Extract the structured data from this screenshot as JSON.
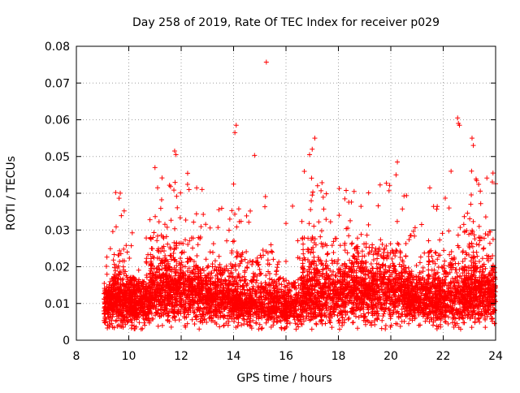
{
  "chart_data": {
    "type": "scatter",
    "title": "Day 258 of 2019, Rate Of TEC Index for receiver p029",
    "xlabel": "GPS time / hours",
    "ylabel": "ROTI / TECUs",
    "xlim": [
      8,
      24
    ],
    "ylim": [
      0,
      0.08
    ],
    "xticks": [
      8,
      10,
      12,
      14,
      16,
      18,
      20,
      22,
      24
    ],
    "yticks": [
      0,
      0.01,
      0.02,
      0.03,
      0.04,
      0.05,
      0.06,
      0.07,
      0.08
    ],
    "xtick_labels": [
      "8",
      "10",
      "12",
      "14",
      "16",
      "18",
      "20",
      "22",
      "24"
    ],
    "ytick_labels": [
      "0",
      "0.01",
      "0.02",
      "0.03",
      "0.04",
      "0.05",
      "0.06",
      "0.07",
      "0.08"
    ],
    "grid": true,
    "marker": "+",
    "marker_color": "#ff0000",
    "series": [
      {
        "name": "ROTI",
        "notable_points": [
          {
            "x": 15.25,
            "y": 0.0757
          },
          {
            "x": 14.1,
            "y": 0.0585
          },
          {
            "x": 14.05,
            "y": 0.0565
          },
          {
            "x": 22.55,
            "y": 0.0605
          },
          {
            "x": 22.58,
            "y": 0.059
          },
          {
            "x": 22.62,
            "y": 0.0585
          },
          {
            "x": 23.1,
            "y": 0.055
          },
          {
            "x": 23.15,
            "y": 0.053
          },
          {
            "x": 17.1,
            "y": 0.055
          },
          {
            "x": 17.0,
            "y": 0.052
          },
          {
            "x": 16.9,
            "y": 0.0505
          },
          {
            "x": 11.75,
            "y": 0.0515
          },
          {
            "x": 11.8,
            "y": 0.0505
          },
          {
            "x": 14.8,
            "y": 0.0503
          },
          {
            "x": 20.25,
            "y": 0.0485
          },
          {
            "x": 20.2,
            "y": 0.045
          },
          {
            "x": 23.9,
            "y": 0.0455
          },
          {
            "x": 14.0,
            "y": 0.0425
          },
          {
            "x": 12.3,
            "y": 0.041
          },
          {
            "x": 9.5,
            "y": 0.0402
          },
          {
            "x": 18.6,
            "y": 0.0405
          },
          {
            "x": 16.25,
            "y": 0.0365
          },
          {
            "x": 22.3,
            "y": 0.046
          },
          {
            "x": 11.0,
            "y": 0.047
          },
          {
            "x": 11.1,
            "y": 0.0415
          }
        ],
        "segments": [
          {
            "x_start": 9.05,
            "x_end": 9.4,
            "base": 0.0095,
            "spread": 0.006,
            "spikes": 0.016,
            "count": 170
          },
          {
            "x_start": 9.4,
            "x_end": 10.0,
            "base": 0.0105,
            "spread": 0.007,
            "spikes": 0.026,
            "count": 300
          },
          {
            "x_start": 10.0,
            "x_end": 10.8,
            "base": 0.01,
            "spread": 0.006,
            "spikes": 0.018,
            "count": 380
          },
          {
            "x_start": 10.8,
            "x_end": 12.8,
            "base": 0.013,
            "spread": 0.008,
            "spikes": 0.03,
            "count": 900
          },
          {
            "x_start": 12.8,
            "x_end": 13.9,
            "base": 0.011,
            "spread": 0.006,
            "spikes": 0.022,
            "count": 450
          },
          {
            "x_start": 13.9,
            "x_end": 15.7,
            "base": 0.01,
            "spread": 0.006,
            "spikes": 0.026,
            "count": 700
          },
          {
            "x_start": 15.7,
            "x_end": 16.6,
            "base": 0.009,
            "spread": 0.005,
            "spikes": 0.018,
            "count": 300
          },
          {
            "x_start": 16.6,
            "x_end": 18.2,
            "base": 0.012,
            "spread": 0.008,
            "spikes": 0.03,
            "count": 650
          },
          {
            "x_start": 18.2,
            "x_end": 20.6,
            "base": 0.013,
            "spread": 0.008,
            "spikes": 0.028,
            "count": 950
          },
          {
            "x_start": 20.6,
            "x_end": 21.4,
            "base": 0.011,
            "spread": 0.006,
            "spikes": 0.02,
            "count": 350
          },
          {
            "x_start": 21.4,
            "x_end": 22.8,
            "base": 0.011,
            "spread": 0.007,
            "spikes": 0.026,
            "count": 560
          },
          {
            "x_start": 22.8,
            "x_end": 24.0,
            "base": 0.0125,
            "spread": 0.008,
            "spikes": 0.032,
            "count": 600
          }
        ]
      }
    ]
  }
}
